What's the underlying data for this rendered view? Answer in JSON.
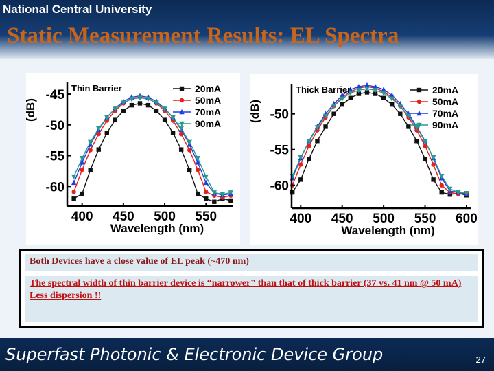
{
  "header": {
    "university": "National Central University",
    "title": "Static Measurement Results: EL Spectra"
  },
  "chart_data": [
    {
      "type": "line",
      "title": "Thin Barrier",
      "xlabel": "Wavelength (nm)",
      "ylabel": "(dB)",
      "legend": "upper right",
      "x": [
        390,
        400,
        410,
        420,
        430,
        440,
        450,
        460,
        470,
        480,
        490,
        500,
        510,
        520,
        530,
        540,
        550,
        560,
        570,
        580
      ],
      "xlim": [
        382,
        583
      ],
      "ylim": [
        -63.2,
        -43.1
      ],
      "xticks": [
        400,
        450,
        500,
        550
      ],
      "yticks": [
        -45,
        -50,
        -55,
        -60
      ],
      "series": [
        {
          "name": "20mA",
          "color": "#111111",
          "marker": "square",
          "values": [
            -62,
            -61.2,
            -57.3,
            -54.0,
            -51.3,
            -49.2,
            -47.7,
            -46.8,
            -46.5,
            -46.8,
            -47.7,
            -49.2,
            -51.3,
            -54.0,
            -57.3,
            -61.2,
            -62,
            -62.5,
            -62,
            -62.3
          ]
        },
        {
          "name": "50mA",
          "color": "#e8201c",
          "marker": "circle",
          "values": [
            -60.9,
            -57.3,
            -54.1,
            -51.5,
            -49.3,
            -47.7,
            -46.5,
            -45.7,
            -45.5,
            -45.7,
            -46.5,
            -47.7,
            -49.3,
            -51.5,
            -54.1,
            -57.3,
            -60.9,
            -61.5,
            -61.8,
            -61.5
          ]
        },
        {
          "name": "70mA",
          "color": "#1f3fe0",
          "marker": "triangle-up",
          "values": [
            -59.4,
            -56.1,
            -53.2,
            -50.8,
            -48.8,
            -47.3,
            -46.2,
            -45.5,
            -45.3,
            -45.5,
            -46.2,
            -47.3,
            -48.8,
            -50.8,
            -53.2,
            -56.1,
            -59.4,
            -61.1,
            -61.4,
            -61.2
          ]
        },
        {
          "name": "90mA",
          "color": "#2a9a8e",
          "marker": "triangle-down",
          "values": [
            -58.4,
            -55.4,
            -52.8,
            -50.6,
            -48.8,
            -47.4,
            -46.4,
            -45.8,
            -45.6,
            -45.8,
            -46.4,
            -47.4,
            -48.8,
            -50.6,
            -52.8,
            -55.4,
            -58.4,
            -61.0,
            -61.3,
            -61.0
          ]
        }
      ]
    },
    {
      "type": "line",
      "title": "Thick Barrier",
      "xlabel": "Wavelength (nm)",
      "ylabel": "(dB)",
      "legend": "upper right",
      "x": [
        390,
        400,
        410,
        420,
        430,
        440,
        450,
        460,
        470,
        480,
        490,
        500,
        510,
        520,
        530,
        540,
        550,
        560,
        570,
        580,
        590,
        600
      ],
      "xlim": [
        389,
        605
      ],
      "ylim": [
        -63.2,
        -45.8
      ],
      "xticks": [
        400,
        450,
        500,
        550,
        600
      ],
      "yticks": [
        -50,
        -55,
        -60
      ],
      "series": [
        {
          "name": "20mA",
          "color": "#111111",
          "marker": "square",
          "values": [
            -61.0,
            -59.2,
            -56.3,
            -53.8,
            -51.8,
            -50.0,
            -48.7,
            -47.8,
            -47.2,
            -47.0,
            -47.2,
            -47.8,
            -48.7,
            -50.0,
            -51.8,
            -53.8,
            -56.3,
            -59.2,
            -61.0,
            -61.3,
            -61.1,
            -61.4
          ]
        },
        {
          "name": "50mA",
          "color": "#e8201c",
          "marker": "circle",
          "values": [
            -60.0,
            -57.1,
            -54.5,
            -52.3,
            -50.5,
            -48.9,
            -47.7,
            -46.9,
            -46.4,
            -46.2,
            -46.4,
            -46.9,
            -47.7,
            -48.9,
            -50.5,
            -52.3,
            -54.5,
            -57.1,
            -60.0,
            -61.0,
            -61.2,
            -61.1
          ]
        },
        {
          "name": "70mA",
          "color": "#1f3fe0",
          "marker": "triangle-up",
          "values": [
            -59.0,
            -56.2,
            -53.8,
            -51.8,
            -50.0,
            -48.6,
            -47.4,
            -46.6,
            -46.2,
            -46.0,
            -46.2,
            -46.6,
            -47.4,
            -48.6,
            -50.0,
            -51.8,
            -53.8,
            -56.2,
            -59.0,
            -60.8,
            -61.0,
            -61.2
          ]
        },
        {
          "name": "90mA",
          "color": "#2a9a8e",
          "marker": "triangle-down",
          "values": [
            -58.7,
            -56.1,
            -53.9,
            -51.9,
            -50.3,
            -48.9,
            -47.9,
            -47.1,
            -46.7,
            -46.5,
            -46.7,
            -47.1,
            -47.9,
            -48.9,
            -50.3,
            -51.9,
            -53.9,
            -56.1,
            -58.7,
            -60.5,
            -61.0,
            -61.1
          ]
        }
      ]
    }
  ],
  "notes": [
    "Both Devices have a close value of EL peak (~470 nm)",
    "The spectral width of thin barrier device is “narrower” than that of thick barrier (37 vs. 41 nm @ 50 mA)",
    "Less dispersion !!"
  ],
  "footer": {
    "group": "Superfast Photonic & Electronic Device Group",
    "page": "27"
  }
}
